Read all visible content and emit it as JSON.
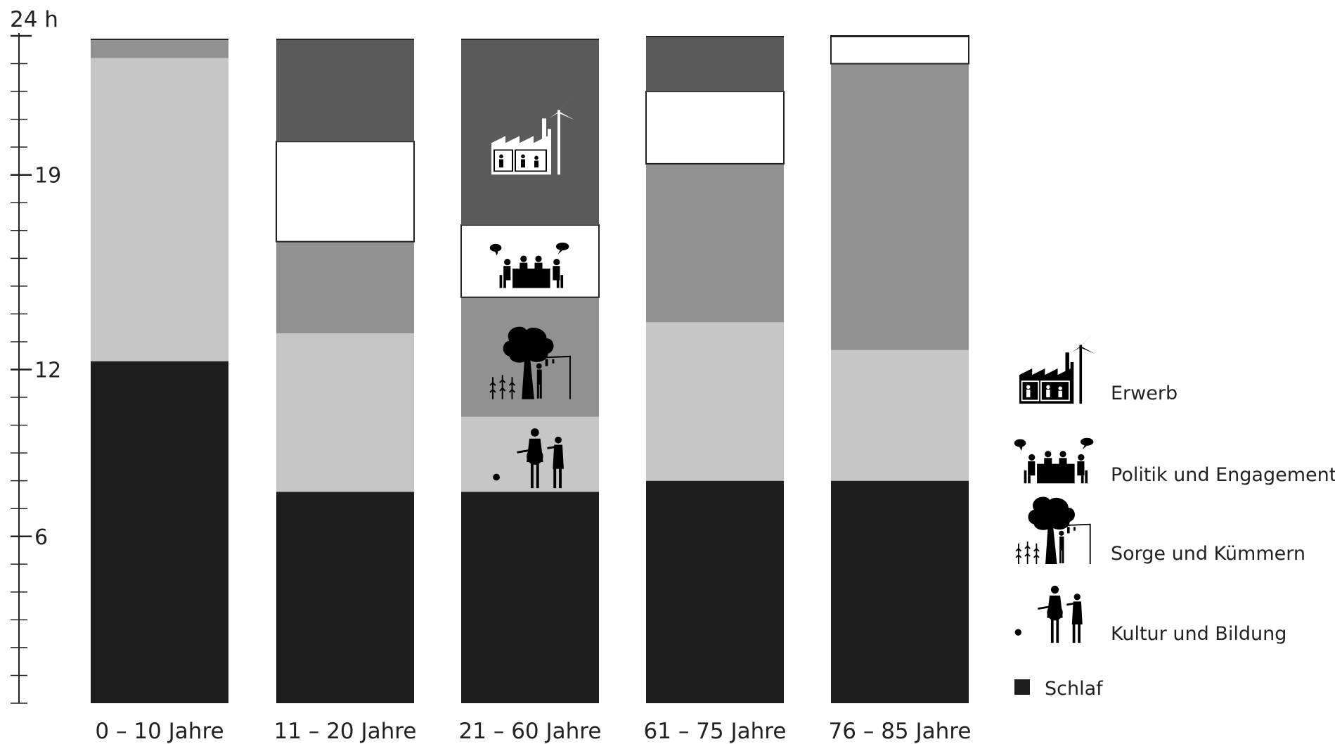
{
  "chart_data": {
    "type": "bar",
    "stacked": true,
    "orientation": "vertical",
    "y_axis": {
      "unit_label": "24 h",
      "tick_labels": [
        "6",
        "12",
        "19"
      ],
      "range": [
        0,
        24
      ],
      "minor_step": 1
    },
    "categories": [
      "0 – 10 Jahre",
      "11 – 20 Jahre",
      "21 – 60 Jahre",
      "61 – 75 Jahre",
      "76 – 85 Jahre"
    ],
    "series": [
      {
        "name": "Schlaf",
        "color": "#1e1e1e",
        "values": [
          12.3,
          7.6,
          7.6,
          8.0,
          8.0
        ]
      },
      {
        "name": "Kultur und Bildung",
        "color": "#c6c6c6",
        "values": [
          10.9,
          5.7,
          2.7,
          5.7,
          4.7
        ]
      },
      {
        "name": "Sorge und Kümmern",
        "color": "#919191",
        "values": [
          0.7,
          3.3,
          4.3,
          5.7,
          10.3
        ]
      },
      {
        "name": "Politik und Engagement",
        "color": "#ffffff",
        "values": [
          0,
          3.6,
          2.6,
          2.6,
          1.0
        ]
      },
      {
        "name": "Erwerb",
        "color": "#5a5a5a",
        "values": [
          0,
          3.7,
          6.7,
          2.0,
          0
        ]
      }
    ],
    "legend": {
      "position": "right",
      "entries": [
        {
          "label": "Erwerb",
          "icon": "factory-wind-turbine-icon"
        },
        {
          "label": "Politik und Engagement",
          "icon": "meeting-speech-bubbles-icon"
        },
        {
          "label": "Sorge und Kümmern",
          "icon": "tree-garden-laundry-icon"
        },
        {
          "label": "Kultur und Bildung",
          "icon": "musicians-icon"
        },
        {
          "label": "Schlaf",
          "icon": "black-square-icon"
        }
      ]
    },
    "icons_in_category": "21 – 60 Jahre"
  }
}
